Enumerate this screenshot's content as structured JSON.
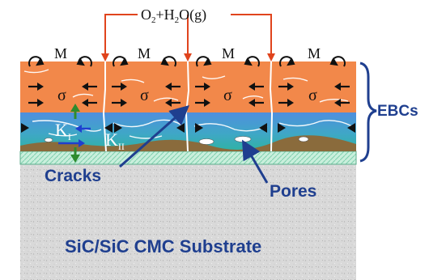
{
  "diagram": {
    "top_label_prefix": "O",
    "top_label_sub1": "2",
    "top_label_mid": "+H",
    "top_label_sub2": "2",
    "top_label_suffix": "O(g)",
    "moment_label": "M",
    "stress_label": "σ",
    "k_label": "K",
    "k_sub_1": "I",
    "k_sub_2": "II",
    "side_label": "EBCs",
    "cracks_label": "Cracks",
    "pores_label": "Pores",
    "substrate_label": "SiC/SiC CMC Substrate"
  },
  "colors": {
    "topcoat": "#f2884a",
    "midcoat_blue": "#4f8fde",
    "midcoat_teal": "#2fb3a3",
    "tgo_brown": "#8a6b3c",
    "bondcoat": "#c4ecd9",
    "substrate": "#d6d6d6",
    "label_blue": "#1f3f8f",
    "oxidant_red": "#e0441d"
  }
}
